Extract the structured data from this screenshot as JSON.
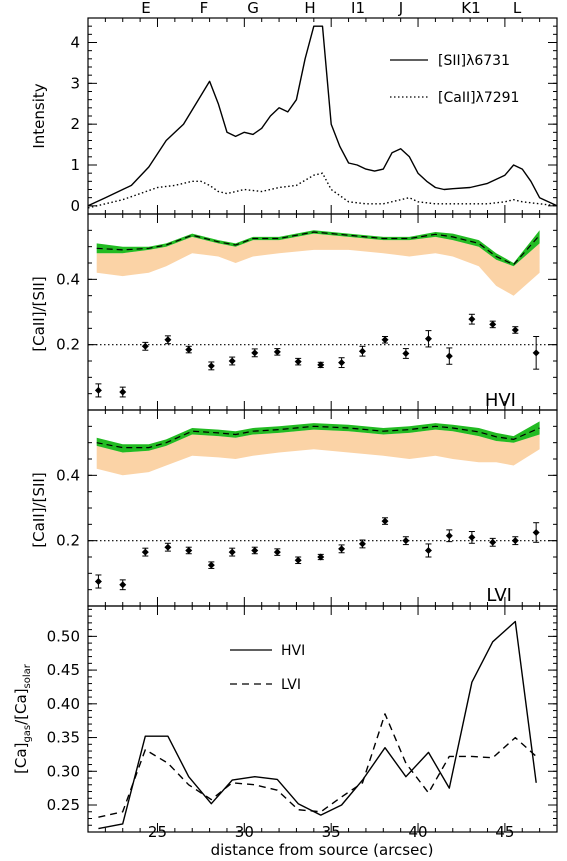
{
  "chart_data": [
    {
      "type": "line",
      "ylabel": "Intensity",
      "xlim": [
        21,
        48
      ],
      "ylim": [
        -0.2,
        4.6
      ],
      "yticks": [
        "0",
        "1",
        "2",
        "3",
        "4"
      ],
      "top_labels": [
        {
          "text": "E",
          "x": 24.5
        },
        {
          "text": "F",
          "x": 27.7
        },
        {
          "text": "G",
          "x": 30.8
        },
        {
          "text": "H",
          "x": 34.3
        },
        {
          "text": "I1",
          "x": 37.2
        },
        {
          "text": "J",
          "x": 39.5
        },
        {
          "text": "K1",
          "x": 43.2
        },
        {
          "text": "L",
          "x": 45.8
        }
      ],
      "legend": "top-right",
      "series": [
        {
          "name": "[SII]λ6731",
          "style": "solid",
          "x": [
            21,
            22,
            23,
            23.5,
            24.5,
            25.5,
            26.5,
            27.5,
            28,
            28.5,
            29,
            29.5,
            30,
            30.5,
            31,
            31.5,
            32,
            32.5,
            33,
            33.5,
            34,
            34.5,
            35,
            35.5,
            36,
            36.5,
            37,
            37.5,
            38,
            38.5,
            39,
            39.5,
            40,
            40.5,
            41,
            41.5,
            42,
            43,
            44,
            45,
            45.5,
            46,
            46.5,
            47,
            48
          ],
          "y": [
            0.0,
            0.2,
            0.4,
            0.5,
            0.95,
            1.6,
            2.0,
            2.7,
            3.05,
            2.5,
            1.8,
            1.7,
            1.8,
            1.75,
            1.9,
            2.2,
            2.4,
            2.3,
            2.6,
            3.6,
            4.4,
            4.4,
            2.0,
            1.45,
            1.05,
            1.0,
            0.9,
            0.85,
            0.9,
            1.3,
            1.4,
            1.2,
            0.8,
            0.6,
            0.45,
            0.4,
            0.42,
            0.45,
            0.55,
            0.75,
            1.0,
            0.9,
            0.6,
            0.2,
            0.0
          ]
        },
        {
          "name": "[CaII]λ7291",
          "style": "dotted",
          "x": [
            21,
            22,
            23,
            24,
            25,
            26,
            27,
            27.5,
            28,
            28.5,
            29,
            30,
            31,
            32,
            33,
            34,
            34.5,
            35,
            36,
            37,
            38,
            39,
            39.5,
            40,
            41,
            42,
            43,
            44,
            45,
            45.5,
            46,
            47,
            48
          ],
          "y": [
            -0.05,
            0.05,
            0.15,
            0.3,
            0.45,
            0.5,
            0.6,
            0.6,
            0.5,
            0.35,
            0.3,
            0.4,
            0.35,
            0.45,
            0.5,
            0.75,
            0.8,
            0.4,
            0.1,
            0.05,
            0.05,
            0.15,
            0.2,
            0.1,
            0.05,
            0.05,
            0.05,
            0.05,
            0.1,
            0.15,
            0.1,
            0.05,
            0.0
          ]
        }
      ]
    },
    {
      "type": "scatter",
      "panel_label": "HVI",
      "ylabel": "[CaII]/[SII]",
      "xlim": [
        21,
        48
      ],
      "ylim": [
        0.0,
        0.6
      ],
      "yticks": [
        "0.2",
        "0.4"
      ],
      "reference_line_y": 0.2,
      "band_x": [
        21.5,
        23,
        24.5,
        25.5,
        27,
        28.5,
        29.5,
        30.5,
        32,
        34,
        36,
        38,
        39.5,
        41,
        42,
        43.5,
        44.5,
        45.5,
        47
      ],
      "band_orange_low": [
        0.42,
        0.41,
        0.42,
        0.44,
        0.48,
        0.47,
        0.45,
        0.47,
        0.48,
        0.49,
        0.49,
        0.48,
        0.47,
        0.48,
        0.47,
        0.44,
        0.38,
        0.35,
        0.42
      ],
      "band_green_low": [
        0.48,
        0.48,
        0.49,
        0.5,
        0.53,
        0.51,
        0.5,
        0.52,
        0.52,
        0.54,
        0.53,
        0.52,
        0.52,
        0.53,
        0.52,
        0.5,
        0.46,
        0.44,
        0.51
      ],
      "band_green_high": [
        0.51,
        0.5,
        0.5,
        0.51,
        0.54,
        0.52,
        0.51,
        0.53,
        0.53,
        0.55,
        0.54,
        0.53,
        0.53,
        0.545,
        0.54,
        0.52,
        0.48,
        0.45,
        0.55
      ],
      "dashed_line": [
        0.495,
        0.49,
        0.495,
        0.505,
        0.535,
        0.515,
        0.505,
        0.525,
        0.525,
        0.545,
        0.535,
        0.525,
        0.525,
        0.538,
        0.53,
        0.51,
        0.47,
        0.445,
        0.535
      ],
      "points": {
        "x": [
          21.6,
          23,
          24.3,
          25.6,
          26.8,
          28.1,
          29.3,
          30.6,
          31.9,
          33.1,
          34.4,
          35.6,
          36.8,
          38.1,
          39.3,
          40.6,
          41.8,
          43.1,
          44.3,
          45.6,
          46.8
        ],
        "y": [
          0.06,
          0.055,
          0.195,
          0.215,
          0.185,
          0.135,
          0.15,
          0.175,
          0.178,
          0.148,
          0.138,
          0.145,
          0.18,
          0.215,
          0.173,
          0.218,
          0.165,
          0.278,
          0.262,
          0.245,
          0.175
        ],
        "err": [
          0.02,
          0.015,
          0.012,
          0.012,
          0.01,
          0.012,
          0.012,
          0.012,
          0.01,
          0.01,
          0.008,
          0.015,
          0.015,
          0.01,
          0.015,
          0.025,
          0.025,
          0.015,
          0.01,
          0.01,
          0.05
        ]
      }
    },
    {
      "type": "scatter",
      "panel_label": "LVI",
      "ylabel": "[CaII]/[SII]",
      "xlim": [
        21,
        48
      ],
      "ylim": [
        0.0,
        0.6
      ],
      "yticks": [
        "0.2",
        "0.4"
      ],
      "reference_line_y": 0.2,
      "band_x": [
        21.5,
        23,
        24.5,
        25.5,
        27,
        28.5,
        29.5,
        30.5,
        32,
        34,
        36,
        38,
        39.5,
        41,
        42,
        43.5,
        44.5,
        45.5,
        47
      ],
      "band_orange_low": [
        0.42,
        0.4,
        0.41,
        0.43,
        0.46,
        0.455,
        0.45,
        0.46,
        0.47,
        0.48,
        0.47,
        0.46,
        0.45,
        0.46,
        0.45,
        0.44,
        0.44,
        0.43,
        0.48
      ],
      "band_green_low": [
        0.49,
        0.47,
        0.475,
        0.49,
        0.525,
        0.52,
        0.515,
        0.525,
        0.53,
        0.54,
        0.535,
        0.525,
        0.53,
        0.54,
        0.535,
        0.52,
        0.505,
        0.5,
        0.525
      ],
      "band_green_high": [
        0.515,
        0.495,
        0.495,
        0.51,
        0.545,
        0.54,
        0.535,
        0.545,
        0.55,
        0.56,
        0.555,
        0.545,
        0.55,
        0.56,
        0.555,
        0.545,
        0.53,
        0.52,
        0.565
      ],
      "dashed_line": [
        0.5,
        0.485,
        0.485,
        0.5,
        0.535,
        0.53,
        0.525,
        0.535,
        0.54,
        0.55,
        0.545,
        0.535,
        0.54,
        0.55,
        0.545,
        0.533,
        0.518,
        0.51,
        0.545
      ],
      "points": {
        "x": [
          21.6,
          23,
          24.3,
          25.6,
          26.8,
          28.1,
          29.3,
          30.6,
          31.9,
          33.1,
          34.4,
          35.6,
          36.8,
          38.1,
          39.3,
          40.6,
          41.8,
          43.1,
          44.3,
          45.6,
          46.8
        ],
        "y": [
          0.075,
          0.065,
          0.165,
          0.18,
          0.17,
          0.125,
          0.165,
          0.17,
          0.165,
          0.14,
          0.15,
          0.175,
          0.19,
          0.26,
          0.2,
          0.17,
          0.215,
          0.21,
          0.195,
          0.2,
          0.225
        ],
        "err": [
          0.02,
          0.015,
          0.012,
          0.012,
          0.01,
          0.01,
          0.012,
          0.01,
          0.01,
          0.01,
          0.008,
          0.012,
          0.012,
          0.01,
          0.012,
          0.02,
          0.018,
          0.018,
          0.012,
          0.012,
          0.03
        ]
      }
    },
    {
      "type": "line",
      "ylabel": "[Ca]gas/[Ca]solar",
      "ylabel_parts": {
        "a": "[Ca]",
        "sub1": "gas",
        "b": "/[Ca]",
        "sub2": "solar"
      },
      "xlabel": "distance from source (arcsec)",
      "xlim": [
        21,
        48
      ],
      "ylim": [
        0.21,
        0.545
      ],
      "xticks": [
        "25",
        "30",
        "35",
        "40",
        "45"
      ],
      "yticks": [
        "0.25",
        "0.30",
        "0.35",
        "0.40",
        "0.45",
        "0.50"
      ],
      "legend": "upper-center",
      "series": [
        {
          "name": "HVI",
          "style": "solid",
          "x": [
            21.6,
            23,
            24.3,
            25.6,
            26.8,
            28.1,
            29.3,
            30.6,
            31.9,
            33.1,
            34.4,
            35.6,
            36.8,
            38.1,
            39.3,
            40.6,
            41.8,
            43.1,
            44.3,
            45.6,
            46.8
          ],
          "y": [
            0.215,
            0.222,
            0.352,
            0.352,
            0.292,
            0.252,
            0.287,
            0.292,
            0.288,
            0.252,
            0.235,
            0.25,
            0.287,
            0.335,
            0.292,
            0.328,
            0.275,
            0.432,
            0.492,
            0.522,
            0.283
          ]
        },
        {
          "name": "LVI",
          "style": "dashed",
          "x": [
            21.6,
            23,
            24.3,
            25.6,
            26.8,
            28.1,
            29.3,
            30.6,
            31.9,
            33.1,
            34.4,
            35.6,
            36.8,
            38.1,
            39.3,
            40.6,
            41.8,
            43.1,
            44.3,
            45.6,
            46.8
          ],
          "y": [
            0.232,
            0.24,
            0.332,
            0.312,
            0.28,
            0.258,
            0.283,
            0.28,
            0.272,
            0.243,
            0.24,
            0.262,
            0.283,
            0.385,
            0.312,
            0.268,
            0.322,
            0.322,
            0.32,
            0.35,
            0.322
          ]
        }
      ]
    }
  ]
}
